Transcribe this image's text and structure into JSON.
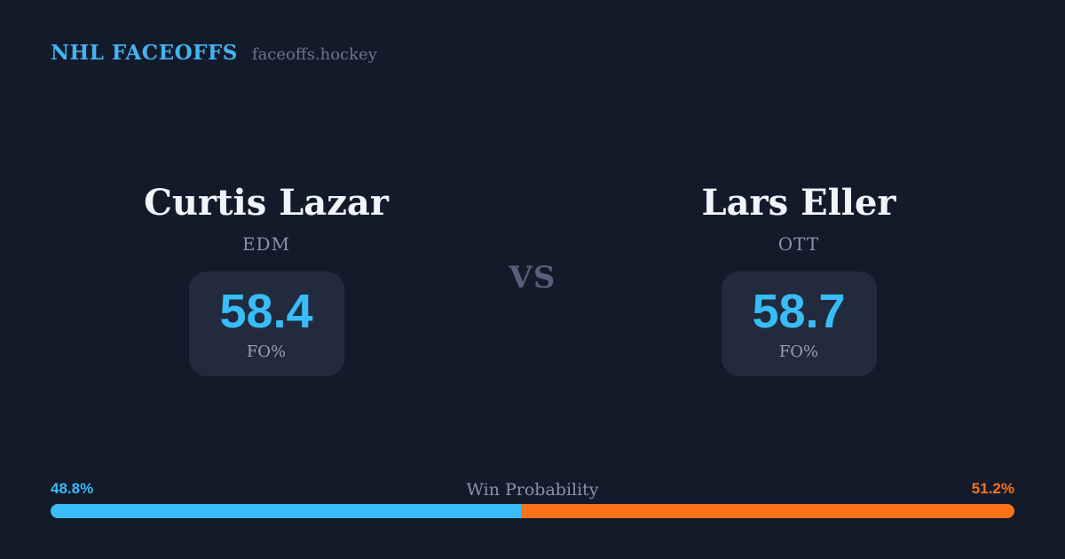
{
  "theme": {
    "background": "#131b2b",
    "card_background": "#212b3d",
    "brand_blue": "#45b3f0",
    "accent_blue": "#38bdf8",
    "accent_orange": "#f97316",
    "text_white": "#f1f4f9",
    "text_gray": "#8a95aa"
  },
  "header": {
    "brand": "NHL FACEOFFS",
    "domain": "faceoffs.hockey"
  },
  "matchup": {
    "vs_label": "VS",
    "players": [
      {
        "name": "Curtis Lazar",
        "team": "EDM",
        "stat_value": "58.4",
        "stat_label": "FO%"
      },
      {
        "name": "Lars Eller",
        "team": "OTT",
        "stat_value": "58.7",
        "stat_label": "FO%"
      }
    ]
  },
  "win_probability": {
    "label": "Win Probability",
    "left_pct": "48.8%",
    "right_pct": "51.2%",
    "left_value": 48.8,
    "right_value": 51.2
  }
}
